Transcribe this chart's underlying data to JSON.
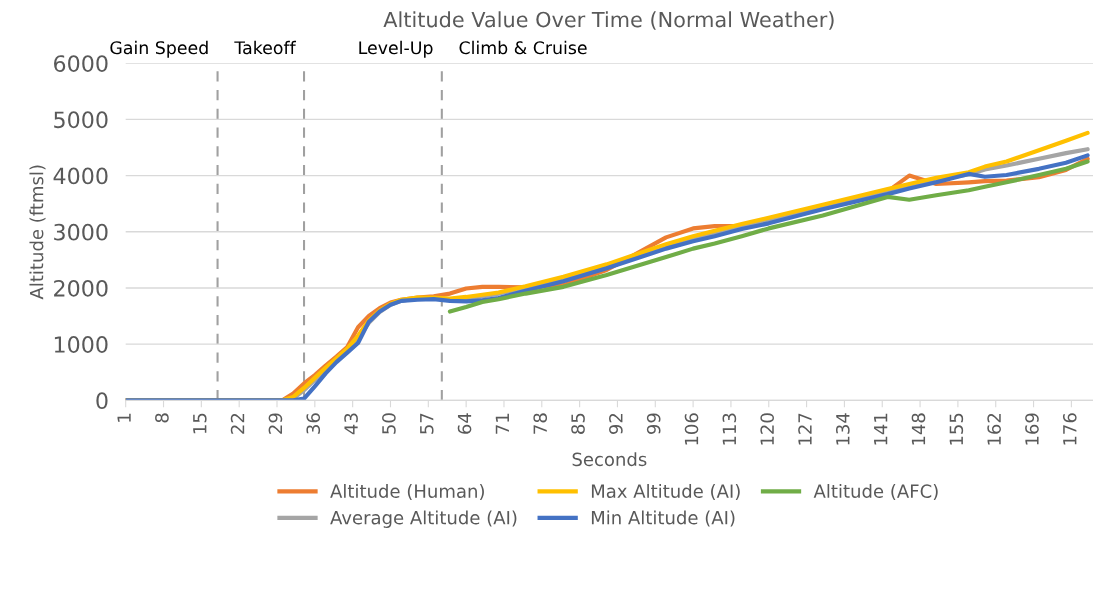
{
  "chart_data": {
    "type": "line",
    "title": "Altitude Value Over Time (Normal Weather)",
    "xlabel": "Seconds",
    "ylabel": "Altitude (ftmsl)",
    "x": [
      1,
      20,
      30,
      32,
      34,
      36,
      38,
      40,
      42,
      44,
      46,
      48,
      50,
      52,
      55,
      58,
      61,
      64,
      67,
      70,
      75,
      82,
      90,
      101,
      106,
      110,
      115,
      120,
      130,
      142,
      146,
      151,
      157,
      160,
      164,
      170,
      175,
      179
    ],
    "xlim": [
      1,
      180
    ],
    "xticks": [
      1,
      8,
      15,
      22,
      29,
      36,
      43,
      50,
      57,
      64,
      71,
      78,
      85,
      92,
      99,
      106,
      113,
      120,
      127,
      134,
      141,
      148,
      155,
      162,
      169,
      176
    ],
    "ylim": [
      0,
      6000
    ],
    "yticks": [
      0,
      1000,
      2000,
      3000,
      4000,
      5000,
      6000
    ],
    "grid": "y",
    "legend": "bottom",
    "marker": "none",
    "line_style": "solid",
    "series": [
      {
        "name": "Altitude (Human)",
        "color": "#ed7d31",
        "values": [
          0,
          0,
          0,
          120,
          300,
          450,
          620,
          780,
          950,
          1300,
          1500,
          1640,
          1740,
          1790,
          1830,
          1850,
          1900,
          1990,
          2020,
          2020,
          2010,
          2050,
          2320,
          2900,
          3060,
          3100,
          3100,
          3200,
          3450,
          3720,
          4000,
          3850,
          3880,
          3900,
          3910,
          3970,
          4100,
          4300
        ]
      },
      {
        "name": "Average Altitude (AI)",
        "color": "#a5a5a5",
        "values": [
          0,
          0,
          0,
          30,
          180,
          360,
          540,
          710,
          880,
          1100,
          1380,
          1570,
          1700,
          1770,
          1820,
          1820,
          1790,
          1790,
          1850,
          1900,
          2000,
          2170,
          2390,
          2740,
          2880,
          2980,
          3100,
          3210,
          3440,
          3720,
          3810,
          3930,
          4020,
          4110,
          4180,
          4300,
          4400,
          4470
        ]
      },
      {
        "name": "Max Altitude (AI)",
        "color": "#ffc000",
        "values": [
          0,
          0,
          0,
          60,
          220,
          400,
          580,
          750,
          920,
          1150,
          1420,
          1600,
          1720,
          1790,
          1830,
          1830,
          1810,
          1840,
          1880,
          1920,
          2030,
          2200,
          2420,
          2780,
          2920,
          3020,
          3140,
          3250,
          3480,
          3760,
          3850,
          3960,
          4060,
          4160,
          4250,
          4450,
          4620,
          4760
        ]
      },
      {
        "name": "Min Altitude (AI)",
        "color": "#4472c4",
        "values": [
          0,
          0,
          0,
          0,
          30,
          250,
          480,
          680,
          850,
          1020,
          1400,
          1580,
          1700,
          1770,
          1790,
          1800,
          1770,
          1760,
          1780,
          1820,
          1950,
          2120,
          2350,
          2700,
          2830,
          2920,
          3050,
          3150,
          3400,
          3670,
          3770,
          3880,
          4030,
          3980,
          4010,
          4120,
          4230,
          4360
        ]
      },
      {
        "name": "Altitude (AFC)",
        "color": "#70ad47",
        "values": [
          null,
          null,
          null,
          null,
          null,
          null,
          null,
          null,
          null,
          null,
          null,
          null,
          null,
          null,
          null,
          null,
          1580,
          1660,
          1750,
          1800,
          1900,
          2020,
          2230,
          2550,
          2700,
          2790,
          2920,
          3060,
          3290,
          3620,
          3570,
          3650,
          3740,
          3800,
          3880,
          4010,
          4120,
          4250
        ]
      }
    ],
    "ref_lines": [
      {
        "axis": "x",
        "value": 18,
        "color": "#a0a0a0",
        "line_style": "dashed"
      },
      {
        "axis": "x",
        "value": 34,
        "color": "#a0a0a0",
        "line_style": "dashed"
      },
      {
        "axis": "x",
        "value": 59.5,
        "color": "#a0a0a0",
        "line_style": "dashed"
      }
    ],
    "annotations": [
      "Gain Speed",
      "Takeoff",
      "Level-Up",
      "Climb & Cruise"
    ]
  }
}
